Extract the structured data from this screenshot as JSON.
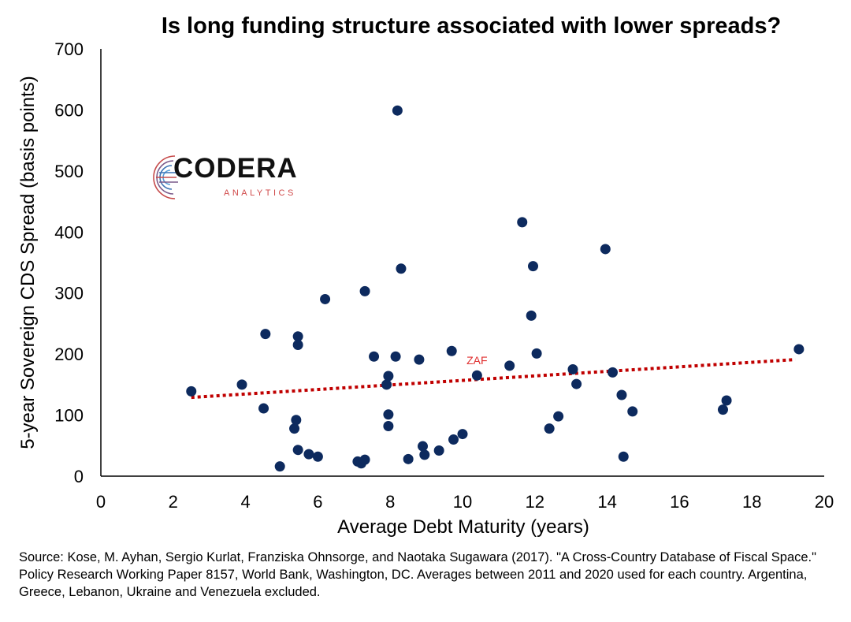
{
  "chart_data": {
    "type": "scatter",
    "title": "Is long funding structure associated with lower spreads?",
    "xlabel": "Average Debt Maturity (years)",
    "ylabel": "5-year Sovereign CDS Spread (basis points)",
    "xlim": [
      0,
      20
    ],
    "ylim": [
      0,
      700
    ],
    "xticks": [
      "0",
      "2",
      "4",
      "6",
      "8",
      "10",
      "12",
      "14",
      "16",
      "18",
      "20"
    ],
    "yticks": [
      "0",
      "100",
      "200",
      "300",
      "400",
      "500",
      "600",
      "700"
    ],
    "grid": false,
    "marker_color": "#0d2a5e",
    "trendline": {
      "type": "linear",
      "color": "#c00000",
      "style": "dotted",
      "x": [
        2.5,
        19.2
      ],
      "y": [
        129,
        191
      ]
    },
    "annotations": [
      {
        "text": "ZAF",
        "x": 10.4,
        "y": 165,
        "color": "#e03030"
      }
    ],
    "points": [
      {
        "x": 2.5,
        "y": 139
      },
      {
        "x": 3.9,
        "y": 150
      },
      {
        "x": 4.5,
        "y": 111
      },
      {
        "x": 4.55,
        "y": 233
      },
      {
        "x": 4.95,
        "y": 16
      },
      {
        "x": 5.35,
        "y": 78
      },
      {
        "x": 5.4,
        "y": 92
      },
      {
        "x": 5.45,
        "y": 43
      },
      {
        "x": 5.45,
        "y": 229
      },
      {
        "x": 5.45,
        "y": 215
      },
      {
        "x": 5.75,
        "y": 36
      },
      {
        "x": 6.0,
        "y": 32
      },
      {
        "x": 6.2,
        "y": 290
      },
      {
        "x": 7.1,
        "y": 24
      },
      {
        "x": 7.2,
        "y": 21
      },
      {
        "x": 7.3,
        "y": 27
      },
      {
        "x": 7.3,
        "y": 303
      },
      {
        "x": 7.55,
        "y": 196
      },
      {
        "x": 7.9,
        "y": 150
      },
      {
        "x": 7.95,
        "y": 164
      },
      {
        "x": 7.95,
        "y": 101
      },
      {
        "x": 7.95,
        "y": 82
      },
      {
        "x": 8.15,
        "y": 196
      },
      {
        "x": 8.2,
        "y": 599
      },
      {
        "x": 8.3,
        "y": 340
      },
      {
        "x": 8.5,
        "y": 28
      },
      {
        "x": 8.8,
        "y": 191
      },
      {
        "x": 8.9,
        "y": 49
      },
      {
        "x": 8.95,
        "y": 35
      },
      {
        "x": 9.35,
        "y": 42
      },
      {
        "x": 9.7,
        "y": 205
      },
      {
        "x": 9.75,
        "y": 60
      },
      {
        "x": 10.0,
        "y": 69
      },
      {
        "x": 10.4,
        "y": 165
      },
      {
        "x": 11.3,
        "y": 181
      },
      {
        "x": 11.65,
        "y": 416
      },
      {
        "x": 11.9,
        "y": 263
      },
      {
        "x": 11.95,
        "y": 344
      },
      {
        "x": 12.05,
        "y": 201
      },
      {
        "x": 12.4,
        "y": 78
      },
      {
        "x": 12.65,
        "y": 98
      },
      {
        "x": 13.05,
        "y": 175
      },
      {
        "x": 13.15,
        "y": 151
      },
      {
        "x": 13.95,
        "y": 372
      },
      {
        "x": 14.15,
        "y": 170
      },
      {
        "x": 14.4,
        "y": 133
      },
      {
        "x": 14.45,
        "y": 32
      },
      {
        "x": 14.7,
        "y": 106
      },
      {
        "x": 17.2,
        "y": 109
      },
      {
        "x": 17.3,
        "y": 124
      },
      {
        "x": 19.3,
        "y": 208
      }
    ]
  },
  "logo": {
    "name": "CODERA",
    "subtitle": "ANALYTICS",
    "icon": "codera-circuit-logo-icon"
  },
  "source_note": "Source: Kose, M. Ayhan, Sergio Kurlat, Franziska Ohnsorge, and Naotaka Sugawara (2017). \"A Cross-Country Database of Fiscal Space.\" Policy Research Working Paper 8157, World Bank, Washington, DC. Averages between 2011 and 2020 used for each country. Argentina, Greece, Lebanon, Ukraine and Venezuela excluded."
}
